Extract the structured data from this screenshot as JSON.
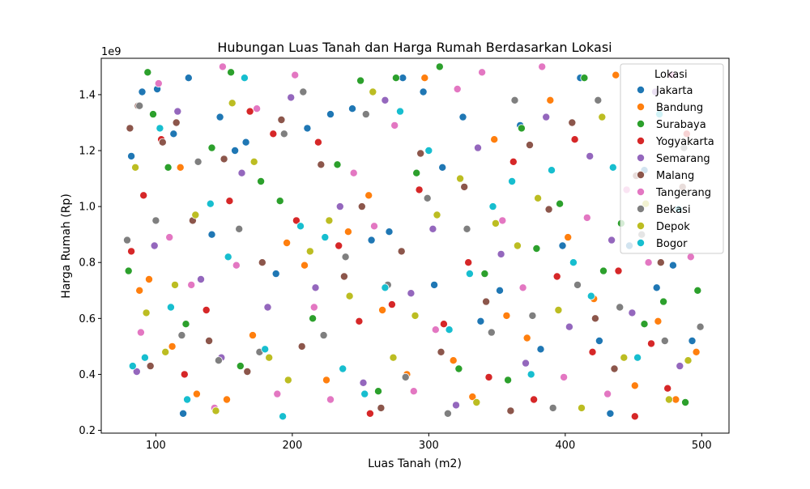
{
  "chart_data": {
    "type": "scatter",
    "title": "Hubungan Luas Tanah dan Harga Rumah Berdasarkan Lokasi",
    "xlabel": "Luas Tanah (m2)",
    "ylabel": "Harga Rumah (Rp)",
    "y_offset_label": "1e9",
    "xlim": [
      60,
      520
    ],
    "ylim": [
      0.19,
      1.53
    ],
    "x_ticks": [
      100,
      200,
      300,
      400,
      500
    ],
    "x_tick_labels": [
      "100",
      "200",
      "300",
      "400",
      "500"
    ],
    "y_ticks": [
      0.2,
      0.4,
      0.6,
      0.8,
      1.0,
      1.2,
      1.4
    ],
    "y_tick_labels": [
      "0.2",
      "0.4",
      "0.6",
      "0.8",
      "1.0",
      "1.2",
      "1.4"
    ],
    "grid": false,
    "legend": {
      "title": "Lokasi",
      "placement": "top-right"
    },
    "series": [
      {
        "name": "Jakarta",
        "color": "#1f77b4",
        "points": [
          [
            82,
            1.18
          ],
          [
            90,
            1.41
          ],
          [
            101,
            1.42
          ],
          [
            113,
            1.26
          ],
          [
            120,
            0.26
          ],
          [
            124,
            1.46
          ],
          [
            141,
            0.9
          ],
          [
            147,
            1.32
          ],
          [
            158,
            1.2
          ],
          [
            166,
            1.23
          ],
          [
            188,
            0.76
          ],
          [
            211,
            1.28
          ],
          [
            228,
            1.33
          ],
          [
            244,
            1.35
          ],
          [
            258,
            0.88
          ],
          [
            271,
            0.91
          ],
          [
            281,
            1.46
          ],
          [
            296,
            1.41
          ],
          [
            304,
            0.72
          ],
          [
            310,
            1.14
          ],
          [
            325,
            1.32
          ],
          [
            338,
            0.59
          ],
          [
            352,
            0.7
          ],
          [
            367,
            1.29
          ],
          [
            382,
            0.49
          ],
          [
            398,
            0.86
          ],
          [
            411,
            1.46
          ],
          [
            425,
            0.52
          ],
          [
            433,
            0.26
          ],
          [
            447,
            0.86
          ],
          [
            458,
            1.13
          ],
          [
            467,
            0.71
          ],
          [
            479,
            0.79
          ],
          [
            493,
            0.52
          ]
        ]
      },
      {
        "name": "Bandung",
        "color": "#ff7f0e",
        "points": [
          [
            88,
            0.7
          ],
          [
            95,
            0.74
          ],
          [
            112,
            0.5
          ],
          [
            118,
            1.14
          ],
          [
            130,
            0.33
          ],
          [
            152,
            0.31
          ],
          [
            171,
            0.54
          ],
          [
            196,
            0.87
          ],
          [
            209,
            0.79
          ],
          [
            225,
            0.38
          ],
          [
            241,
            0.91
          ],
          [
            256,
            1.04
          ],
          [
            266,
            0.63
          ],
          [
            284,
            0.4
          ],
          [
            297,
            1.46
          ],
          [
            318,
            0.45
          ],
          [
            332,
            0.32
          ],
          [
            348,
            1.24
          ],
          [
            357,
            0.61
          ],
          [
            372,
            0.53
          ],
          [
            389,
            1.38
          ],
          [
            402,
            0.89
          ],
          [
            421,
            0.67
          ],
          [
            437,
            1.47
          ],
          [
            451,
            0.36
          ],
          [
            468,
            0.59
          ],
          [
            481,
            0.31
          ],
          [
            496,
            0.48
          ]
        ]
      },
      {
        "name": "Surabaya",
        "color": "#2ca02c",
        "points": [
          [
            80,
            0.77
          ],
          [
            94,
            1.48
          ],
          [
            98,
            1.33
          ],
          [
            109,
            1.14
          ],
          [
            122,
            0.58
          ],
          [
            141,
            1.21
          ],
          [
            155,
            1.48
          ],
          [
            162,
            0.43
          ],
          [
            177,
            1.09
          ],
          [
            191,
            1.02
          ],
          [
            215,
            0.6
          ],
          [
            233,
            1.15
          ],
          [
            250,
            1.45
          ],
          [
            263,
            0.34
          ],
          [
            276,
            1.46
          ],
          [
            291,
            1.12
          ],
          [
            308,
            1.5
          ],
          [
            322,
            0.42
          ],
          [
            341,
            0.76
          ],
          [
            358,
            0.38
          ],
          [
            368,
            1.28
          ],
          [
            379,
            0.85
          ],
          [
            396,
            1.01
          ],
          [
            414,
            1.46
          ],
          [
            428,
            0.77
          ],
          [
            441,
            0.94
          ],
          [
            458,
            0.58
          ],
          [
            472,
            0.66
          ],
          [
            488,
            0.3
          ],
          [
            497,
            0.7
          ]
        ]
      },
      {
        "name": "Yogyakarta",
        "color": "#d62728",
        "points": [
          [
            82,
            0.84
          ],
          [
            91,
            1.04
          ],
          [
            104,
            1.24
          ],
          [
            121,
            0.4
          ],
          [
            137,
            0.63
          ],
          [
            154,
            1.02
          ],
          [
            169,
            1.34
          ],
          [
            186,
            1.26
          ],
          [
            203,
            0.95
          ],
          [
            219,
            1.23
          ],
          [
            234,
            0.86
          ],
          [
            249,
            0.59
          ],
          [
            257,
            0.26
          ],
          [
            273,
            0.65
          ],
          [
            293,
            1.06
          ],
          [
            311,
            0.58
          ],
          [
            329,
            0.8
          ],
          [
            344,
            0.39
          ],
          [
            362,
            1.16
          ],
          [
            377,
            0.31
          ],
          [
            394,
            0.75
          ],
          [
            407,
            1.24
          ],
          [
            420,
            0.48
          ],
          [
            439,
            0.77
          ],
          [
            451,
            0.25
          ],
          [
            463,
            0.51
          ],
          [
            475,
            0.35
          ],
          [
            489,
            1.26
          ]
        ]
      },
      {
        "name": "Semarang",
        "color": "#9467bd",
        "points": [
          [
            86,
            0.41
          ],
          [
            99,
            0.86
          ],
          [
            116,
            1.34
          ],
          [
            133,
            0.74
          ],
          [
            148,
            0.46
          ],
          [
            163,
            1.12
          ],
          [
            182,
            0.64
          ],
          [
            199,
            1.39
          ],
          [
            217,
            0.71
          ],
          [
            235,
            1.0
          ],
          [
            252,
            0.37
          ],
          [
            268,
            1.38
          ],
          [
            287,
            0.69
          ],
          [
            303,
            0.92
          ],
          [
            320,
            0.29
          ],
          [
            336,
            1.21
          ],
          [
            353,
            0.83
          ],
          [
            371,
            0.44
          ],
          [
            386,
            1.32
          ],
          [
            403,
            0.57
          ],
          [
            418,
            1.18
          ],
          [
            434,
            0.88
          ],
          [
            449,
            0.62
          ],
          [
            466,
            1.41
          ],
          [
            484,
            0.43
          ]
        ]
      },
      {
        "name": "Malang",
        "color": "#8c564b",
        "points": [
          [
            81,
            1.28
          ],
          [
            87,
            1.36
          ],
          [
            96,
            0.43
          ],
          [
            105,
            1.23
          ],
          [
            115,
            1.3
          ],
          [
            127,
            0.95
          ],
          [
            139,
            0.52
          ],
          [
            150,
            1.17
          ],
          [
            167,
            0.41
          ],
          [
            178,
            0.8
          ],
          [
            192,
            1.31
          ],
          [
            207,
            0.5
          ],
          [
            221,
            1.15
          ],
          [
            238,
            0.75
          ],
          [
            251,
            1.0
          ],
          [
            265,
            0.28
          ],
          [
            280,
            0.84
          ],
          [
            294,
            1.19
          ],
          [
            309,
            0.48
          ],
          [
            326,
            1.07
          ],
          [
            342,
            0.66
          ],
          [
            360,
            0.27
          ],
          [
            374,
            1.22
          ],
          [
            388,
            0.99
          ],
          [
            405,
            1.3
          ],
          [
            422,
            0.6
          ],
          [
            436,
            0.42
          ],
          [
            452,
            1.11
          ],
          [
            470,
            0.8
          ],
          [
            486,
            1.07
          ]
        ]
      },
      {
        "name": "Tangerang",
        "color": "#e377c2",
        "points": [
          [
            89,
            0.55
          ],
          [
            102,
            1.44
          ],
          [
            110,
            0.89
          ],
          [
            126,
            0.72
          ],
          [
            143,
            0.28
          ],
          [
            149,
            1.5
          ],
          [
            159,
            0.79
          ],
          [
            174,
            1.35
          ],
          [
            189,
            0.33
          ],
          [
            202,
            1.47
          ],
          [
            216,
            0.64
          ],
          [
            228,
            0.31
          ],
          [
            245,
            1.12
          ],
          [
            260,
            0.93
          ],
          [
            275,
            1.29
          ],
          [
            289,
            0.34
          ],
          [
            305,
            0.56
          ],
          [
            321,
            1.42
          ],
          [
            339,
            1.48
          ],
          [
            354,
            0.95
          ],
          [
            369,
            0.71
          ],
          [
            383,
            1.5
          ],
          [
            399,
            0.39
          ],
          [
            416,
            0.96
          ],
          [
            431,
            0.33
          ],
          [
            445,
            1.06
          ],
          [
            461,
            0.8
          ],
          [
            478,
            1.47
          ],
          [
            492,
            0.82
          ]
        ]
      },
      {
        "name": "Bekasi",
        "color": "#7f7f7f",
        "points": [
          [
            79,
            0.88
          ],
          [
            88,
            1.36
          ],
          [
            100,
            0.95
          ],
          [
            119,
            0.54
          ],
          [
            131,
            1.16
          ],
          [
            146,
            0.45
          ],
          [
            161,
            0.92
          ],
          [
            176,
            0.48
          ],
          [
            194,
            1.26
          ],
          [
            208,
            1.41
          ],
          [
            223,
            0.54
          ],
          [
            239,
            0.82
          ],
          [
            254,
            1.33
          ],
          [
            270,
            0.72
          ],
          [
            283,
            0.39
          ],
          [
            299,
            1.03
          ],
          [
            314,
            0.26
          ],
          [
            328,
            0.92
          ],
          [
            346,
            0.55
          ],
          [
            363,
            1.38
          ],
          [
            376,
            0.61
          ],
          [
            391,
            0.28
          ],
          [
            409,
            0.72
          ],
          [
            424,
            1.38
          ],
          [
            440,
            0.64
          ],
          [
            456,
            0.9
          ],
          [
            473,
            0.52
          ],
          [
            487,
            1.21
          ],
          [
            499,
            0.57
          ]
        ]
      },
      {
        "name": "Depok",
        "color": "#bcbd22",
        "points": [
          [
            85,
            1.14
          ],
          [
            93,
            0.62
          ],
          [
            107,
            0.48
          ],
          [
            114,
            0.72
          ],
          [
            129,
            0.97
          ],
          [
            144,
            0.27
          ],
          [
            156,
            1.37
          ],
          [
            172,
            1.16
          ],
          [
            183,
            0.46
          ],
          [
            197,
            0.38
          ],
          [
            213,
            0.84
          ],
          [
            227,
            0.95
          ],
          [
            242,
            0.68
          ],
          [
            259,
            1.41
          ],
          [
            274,
            0.46
          ],
          [
            290,
            0.61
          ],
          [
            306,
            0.97
          ],
          [
            323,
            1.1
          ],
          [
            335,
            0.3
          ],
          [
            349,
            0.94
          ],
          [
            365,
            0.86
          ],
          [
            380,
            1.03
          ],
          [
            395,
            0.63
          ],
          [
            412,
            0.28
          ],
          [
            427,
            1.32
          ],
          [
            443,
            0.46
          ],
          [
            459,
            1.01
          ],
          [
            476,
            0.31
          ],
          [
            490,
            0.45
          ]
        ]
      },
      {
        "name": "Bogor",
        "color": "#17becf",
        "points": [
          [
            83,
            0.43
          ],
          [
            92,
            0.46
          ],
          [
            103,
            1.28
          ],
          [
            111,
            0.64
          ],
          [
            123,
            0.31
          ],
          [
            140,
            1.01
          ],
          [
            153,
            0.82
          ],
          [
            165,
            1.46
          ],
          [
            180,
            0.49
          ],
          [
            193,
            0.25
          ],
          [
            206,
            0.93
          ],
          [
            224,
            0.89
          ],
          [
            237,
            0.42
          ],
          [
            253,
            0.33
          ],
          [
            268,
            0.71
          ],
          [
            279,
            1.34
          ],
          [
            300,
            1.2
          ],
          [
            315,
            0.56
          ],
          [
            330,
            0.76
          ],
          [
            347,
            1.0
          ],
          [
            361,
            1.09
          ],
          [
            375,
            0.4
          ],
          [
            390,
            1.13
          ],
          [
            406,
            0.8
          ],
          [
            419,
            0.68
          ],
          [
            435,
            1.14
          ],
          [
            453,
            0.46
          ],
          [
            469,
            1.33
          ],
          [
            483,
            0.99
          ]
        ]
      }
    ]
  }
}
